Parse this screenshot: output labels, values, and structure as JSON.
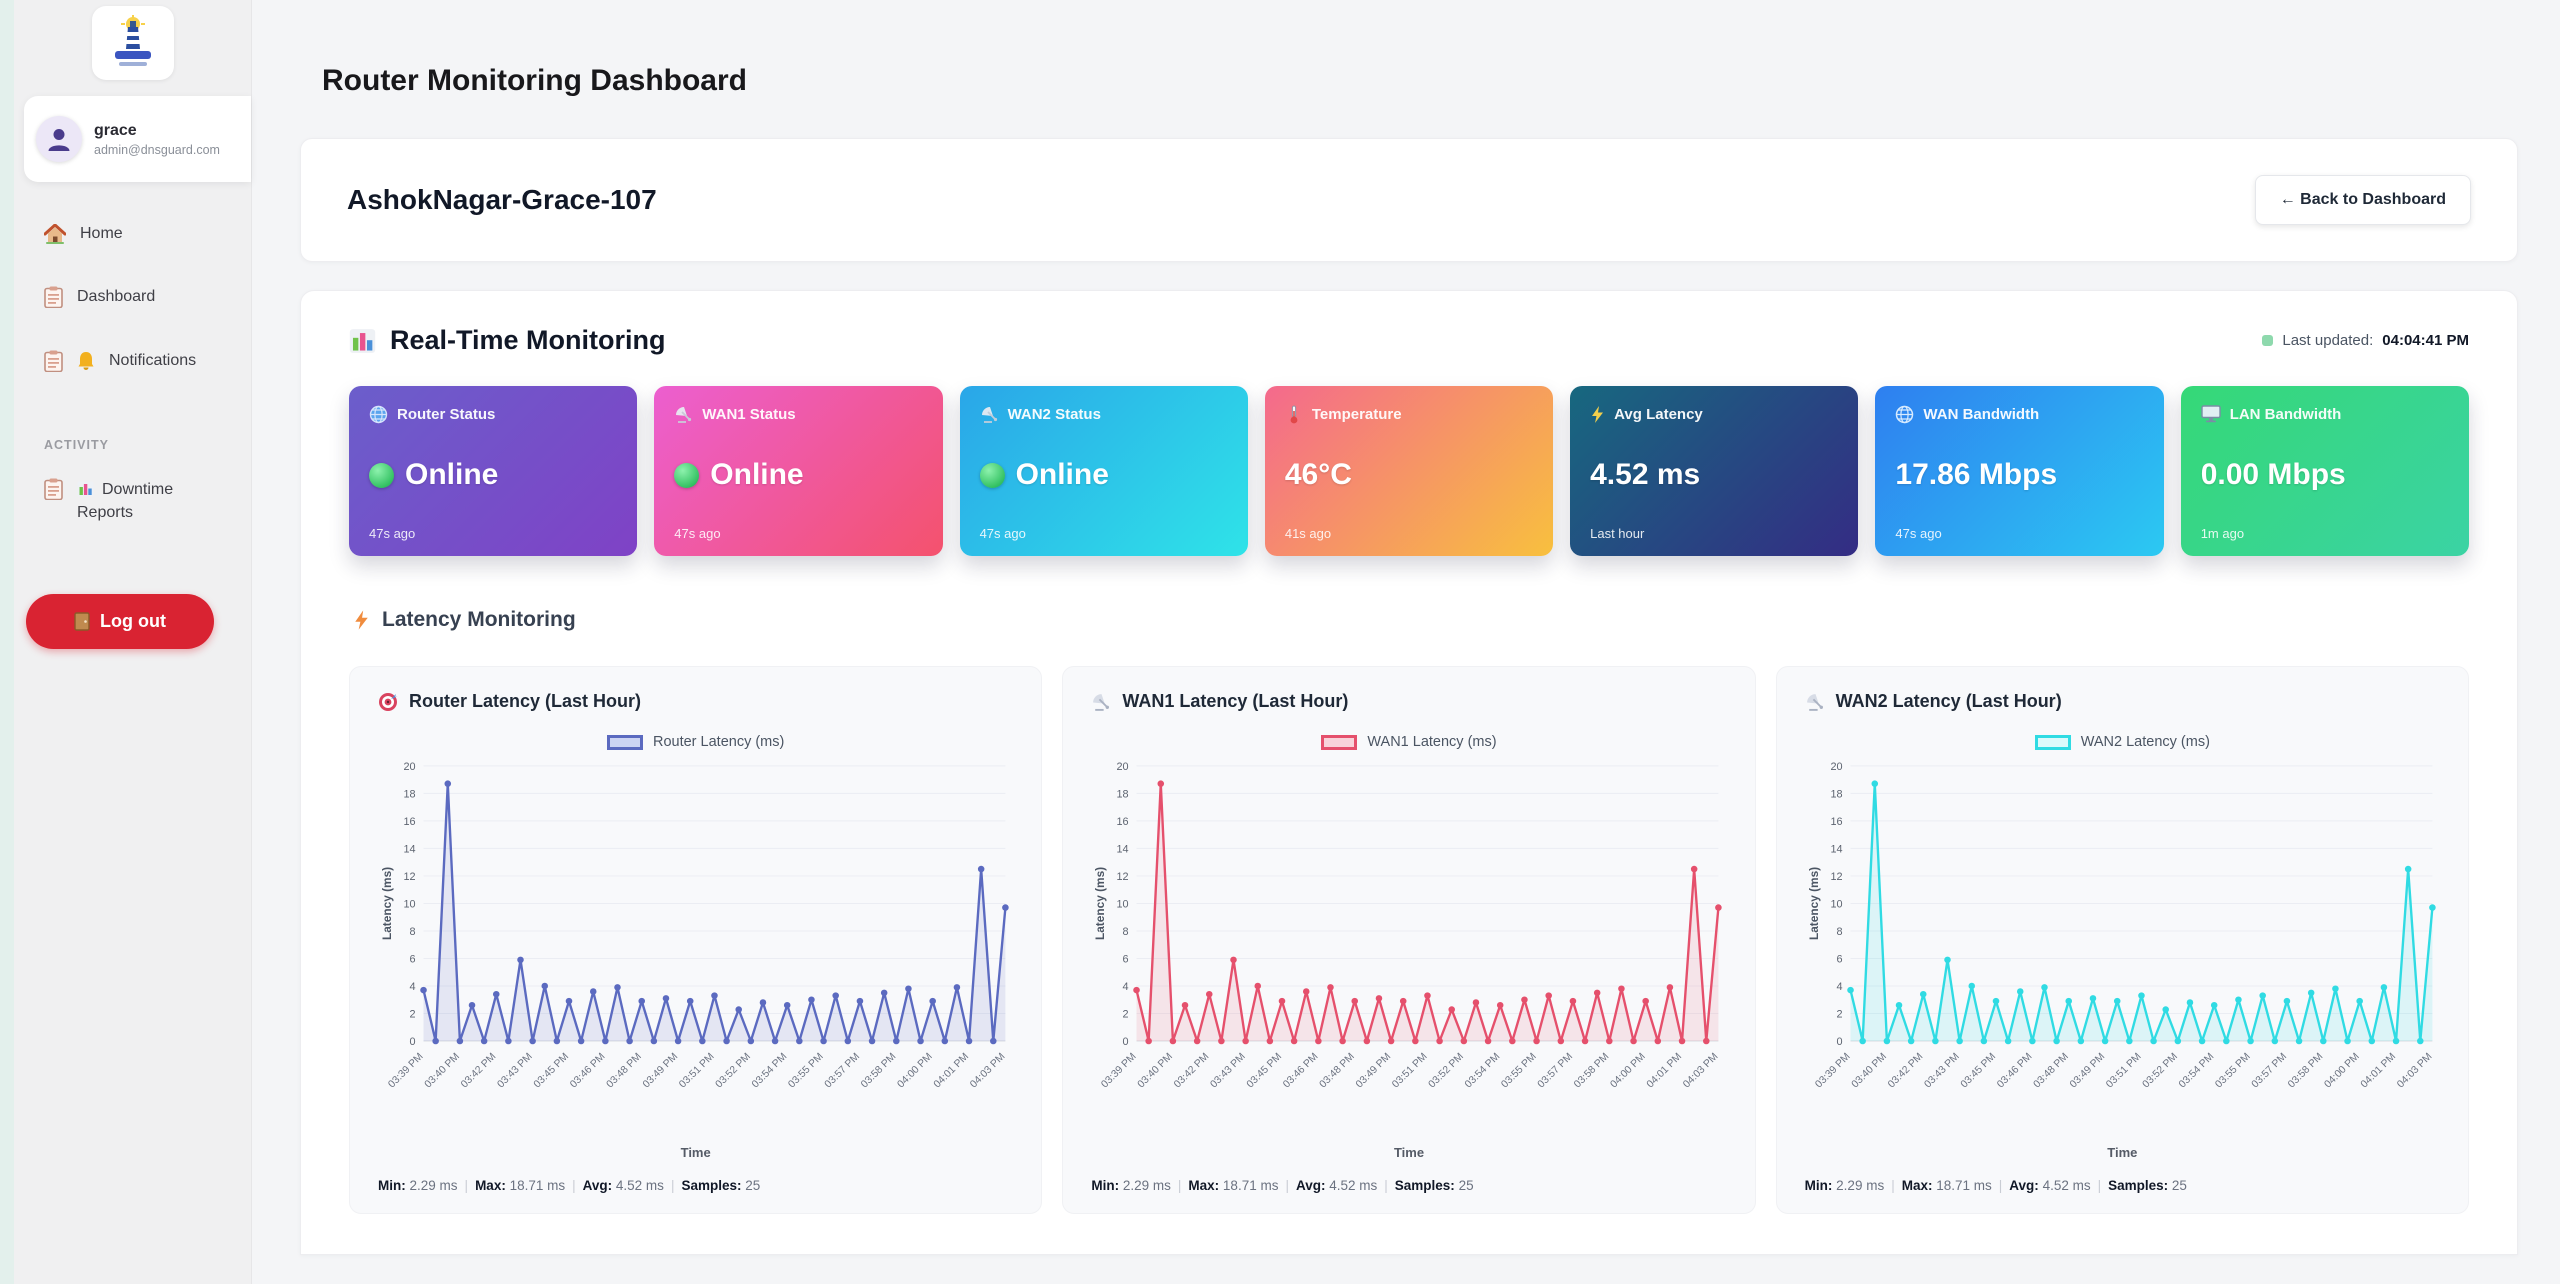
{
  "page": {
    "title": "Router Monitoring Dashboard"
  },
  "sidebar": {
    "user": {
      "name": "grace",
      "email": "admin@dnsguard.com"
    },
    "items": [
      {
        "label": "Home",
        "icon": "house-icon"
      },
      {
        "label": "Dashboard",
        "icon": "clipboard-icon"
      },
      {
        "label": "Notifications",
        "icon": "bell-icon"
      }
    ],
    "section_label": "ACTIVITY",
    "activity_items": [
      {
        "label": "Downtime Reports",
        "icon": "bar-chart-icon"
      }
    ],
    "logout_label": "Log out"
  },
  "device": {
    "name": "AshokNagar-Grace-107",
    "back_button": "← Back to Dashboard"
  },
  "monitoring": {
    "title": "Real-Time Monitoring",
    "icon": "bar-chart-icon",
    "last_updated_label": "Last updated:",
    "last_updated_value": "04:04:41 PM",
    "latency_section_title": "Latency Monitoring",
    "latency_section_icon": "lightning-icon",
    "cards": [
      {
        "label": "Router Status",
        "value": "Online",
        "footer": "47s ago",
        "icon": "globe-icon",
        "online": true,
        "gradient": [
          "#6b5ecb",
          "#7f42c6"
        ]
      },
      {
        "label": "WAN1 Status",
        "value": "Online",
        "footer": "47s ago",
        "icon": "satellite-icon",
        "online": true,
        "gradient": [
          "#ec5fd0",
          "#f4526d"
        ]
      },
      {
        "label": "WAN2 Status",
        "value": "Online",
        "footer": "47s ago",
        "icon": "satellite-icon",
        "online": true,
        "gradient": [
          "#2aa6e8",
          "#2fe3e8"
        ]
      },
      {
        "label": "Temperature",
        "value": "46°C",
        "footer": "41s ago",
        "icon": "thermometer-icon",
        "online": false,
        "gradient": [
          "#f4698d",
          "#f8c03e"
        ]
      },
      {
        "label": "Avg Latency",
        "value": "4.52 ms",
        "footer": "Last hour",
        "icon": "lightning-icon",
        "online": false,
        "gradient": [
          "#17687f",
          "#342c84"
        ]
      },
      {
        "label": "WAN Bandwidth",
        "value": "17.86 Mbps",
        "footer": "47s ago",
        "icon": "globe-icon",
        "online": false,
        "gradient": [
          "#2e7ff0",
          "#2cc9f2"
        ]
      },
      {
        "label": "LAN Bandwidth",
        "value": "0.00 Mbps",
        "footer": "1m ago",
        "icon": "monitor-icon",
        "online": false,
        "gradient": [
          "#35d877",
          "#3bd3a4"
        ]
      }
    ]
  },
  "chart_data": {
    "type": "line",
    "xlabel": "Time",
    "ylabel": "Latency (ms)",
    "ylim": [
      0,
      20
    ],
    "y_ticks": [
      0,
      2,
      4,
      6,
      8,
      10,
      12,
      14,
      16,
      18,
      20
    ],
    "x_tick_labels": [
      "03:39 PM",
      "03:40 PM",
      "03:42 PM",
      "03:43 PM",
      "03:45 PM",
      "03:46 PM",
      "03:48 PM",
      "03:49 PM",
      "03:51 PM",
      "03:52 PM",
      "03:54 PM",
      "03:55 PM",
      "03:57 PM",
      "03:58 PM",
      "04:00 PM",
      "04:01 PM",
      "04:03 PM"
    ],
    "values": [
      3.7,
      0,
      18.71,
      0,
      2.6,
      0,
      3.4,
      0,
      5.9,
      0,
      4.0,
      0,
      2.9,
      0,
      3.6,
      0,
      3.9,
      0,
      2.9,
      0,
      3.1,
      0,
      2.9,
      0,
      3.3,
      0,
      2.29,
      0,
      2.8,
      0,
      2.6,
      0,
      3.0,
      0,
      3.3,
      0,
      2.9,
      0,
      3.5,
      0,
      3.8,
      0,
      2.9,
      0,
      3.9,
      0,
      12.5,
      0,
      9.7
    ],
    "charts": [
      {
        "title": "Router Latency (Last Hour)",
        "icon": "target-icon",
        "legend": "Router Latency (ms)",
        "color": "#5b6ac0",
        "fill": "rgba(91,106,192,0.13)",
        "swatch_fill": "#ccd4f3"
      },
      {
        "title": "WAN1 Latency (Last Hour)",
        "icon": "satellite-icon",
        "legend": "WAN1 Latency (ms)",
        "color": "#e5506c",
        "fill": "rgba(229,80,108,0.12)",
        "swatch_fill": "#f8d3da"
      },
      {
        "title": "WAN2 Latency (Last Hour)",
        "icon": "satellite-icon",
        "legend": "WAN2 Latency (ms)",
        "color": "#30dbe3",
        "fill": "rgba(48,219,227,0.14)",
        "swatch_fill": "#dcfafb"
      }
    ],
    "stats": {
      "min_label": "Min:",
      "min": "2.29 ms",
      "max_label": "Max:",
      "max": "18.71 ms",
      "avg_label": "Avg:",
      "avg": "4.52 ms",
      "samples_label": "Samples:",
      "samples": "25",
      "sep": "|"
    }
  }
}
